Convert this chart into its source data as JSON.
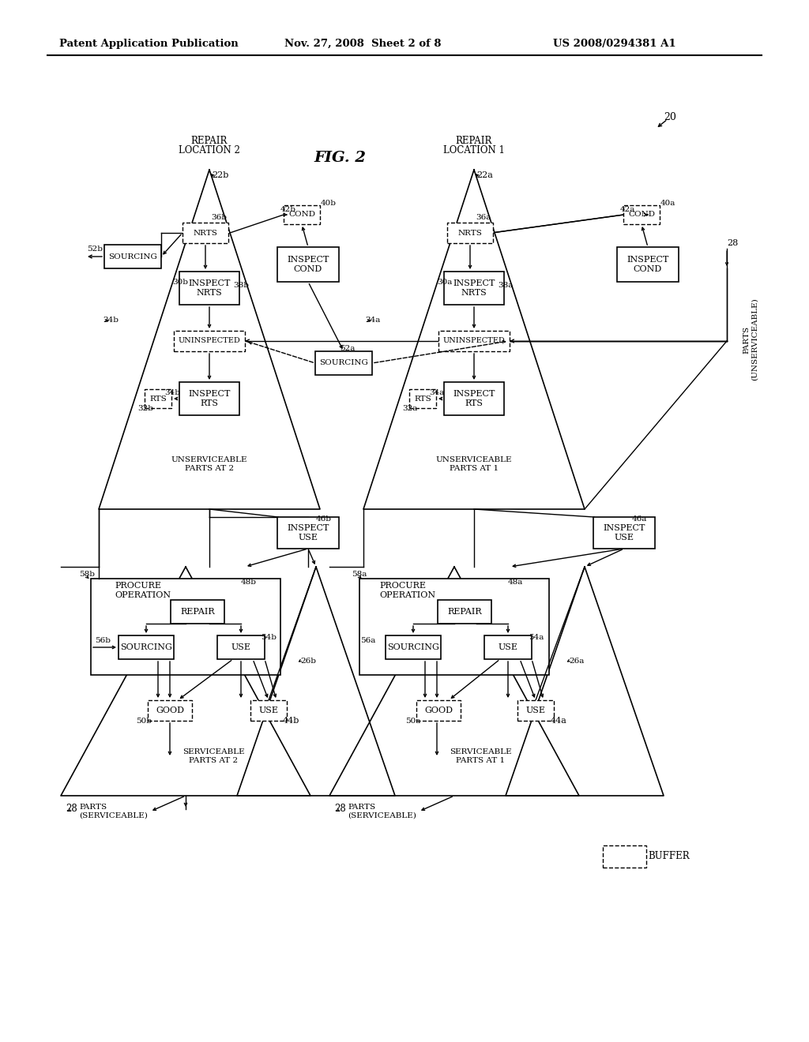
{
  "title_line1": "Patent Application Publication",
  "title_line2": "Nov. 27, 2008  Sheet 2 of 8",
  "title_line3": "US 2008/0294381 A1",
  "fig_label": "FIG. 2",
  "background": "#ffffff"
}
